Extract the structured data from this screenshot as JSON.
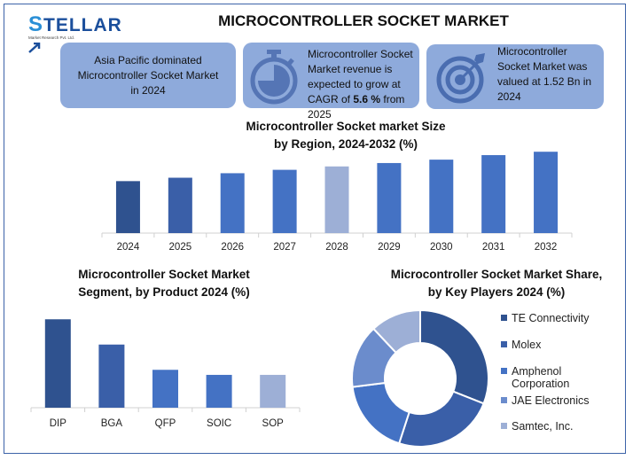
{
  "logo": {
    "brand_initial": "S",
    "brand_rest": "TELLAR",
    "tagline": "Market Research Pvt. Ltd."
  },
  "header": {
    "title": "MICROCONTROLLER SOCKET MARKET"
  },
  "cards": [
    {
      "icon": "globe-region",
      "lines": [
        "Asia Pacific dominated",
        "Microcontroller Socket Market",
        "in 2024"
      ]
    },
    {
      "icon": "stopwatch-icon",
      "lines": [
        "Microcontroller Socket",
        "Market revenue is",
        "expected to grow at"
      ],
      "cagr_prefix": "CAGR of ",
      "cagr_value": "5.6 %",
      "cagr_suffix": " from 2025"
    },
    {
      "icon": "target-icon",
      "lines": [
        "Microcontroller",
        "Socket Market was",
        "valued at 1.52 Bn in",
        "2024"
      ]
    }
  ],
  "colors": {
    "card_bg": "#8eaadb",
    "dark": "#2f528f",
    "mid": "#3a5fa8",
    "main": "#4472c4",
    "light": "#9dafd6",
    "frame": "#3c63a8"
  },
  "chart_data": [
    {
      "type": "bar",
      "title": "Microcontroller Socket market Size by Region, 2024-2032 (%)",
      "title_lines": [
        "Microcontroller Socket market Size",
        "by Region, 2024-2032 (%)"
      ],
      "categories": [
        "2024",
        "2025",
        "2026",
        "2027",
        "2028",
        "2029",
        "2030",
        "2031",
        "2032"
      ],
      "values": [
        46,
        49,
        53,
        56,
        59,
        62,
        65,
        69,
        72
      ],
      "colors": [
        "#2f528f",
        "#3a5fa8",
        "#4472c4",
        "#4472c4",
        "#9dafd6",
        "#4472c4",
        "#4472c4",
        "#4472c4",
        "#4472c4"
      ],
      "xlabel": "",
      "ylabel": "",
      "ylim": [
        0,
        80
      ],
      "grid": false,
      "legend": "none"
    },
    {
      "type": "bar",
      "title": "Microcontroller Socket Market Segment, by Product 2024 (%)",
      "title_lines": [
        "Microcontroller Socket Market",
        "Segment, by Product 2024 (%)"
      ],
      "categories": [
        "DIP",
        "BGA",
        "QFP",
        "SOIC",
        "SOP"
      ],
      "values": [
        35,
        25,
        15,
        13,
        13
      ],
      "colors": [
        "#2f528f",
        "#3a5fa8",
        "#4472c4",
        "#4472c4",
        "#9dafd6"
      ],
      "xlabel": "",
      "ylabel": "",
      "ylim": [
        0,
        40
      ],
      "grid": false,
      "legend": "none"
    },
    {
      "type": "pie",
      "title": "Microcontroller Socket Market Share, by Key Players 2024 (%)",
      "title_lines": [
        "Microcontroller Socket Market Share,",
        "by Key Players 2024 (%)"
      ],
      "labels": [
        "TE Connectivity",
        "Molex",
        "Amphenol Corporation",
        "JAE Electronics",
        "Samtec, Inc."
      ],
      "legend_lines": [
        [
          "TE Connectivity"
        ],
        [
          "Molex"
        ],
        [
          "Amphenol",
          "Corporation"
        ],
        [
          "JAE Electronics"
        ],
        [
          "Samtec, Inc."
        ]
      ],
      "values": [
        31,
        24,
        18,
        15,
        12
      ],
      "colors": [
        "#2f528f",
        "#3a5fa8",
        "#4472c4",
        "#6b8ccc",
        "#9dafd6"
      ],
      "donut": true,
      "legend": "right"
    }
  ]
}
